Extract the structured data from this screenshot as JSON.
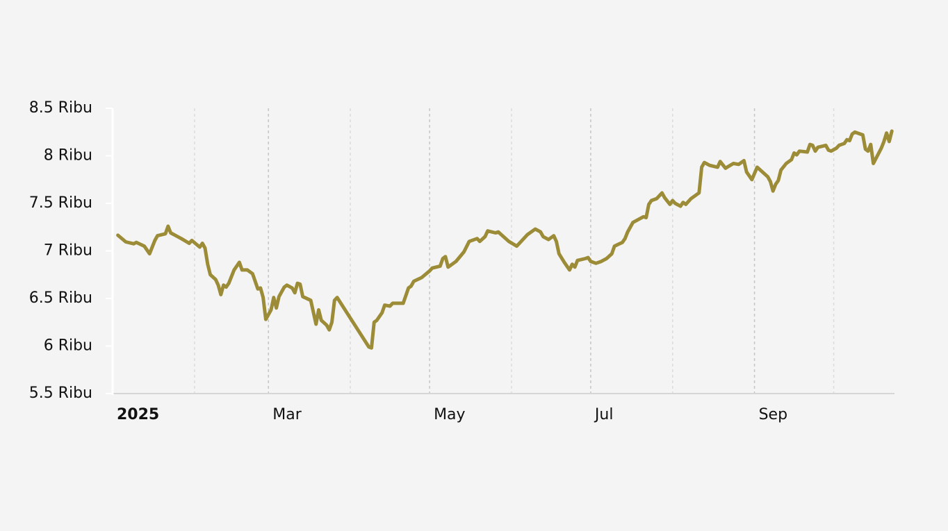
{
  "chart_data": {
    "type": "line",
    "color": "#9c8c37",
    "x": [
      "2025-01-03",
      "2025-01-06",
      "2025-01-09",
      "2025-01-10",
      "2025-01-13",
      "2025-01-15",
      "2025-01-17",
      "2025-01-18",
      "2025-01-21",
      "2025-01-22",
      "2025-01-23",
      "2025-01-27",
      "2025-01-30",
      "2025-01-31",
      "2025-02-03",
      "2025-02-04",
      "2025-02-05",
      "2025-02-06",
      "2025-02-07",
      "2025-02-09",
      "2025-02-10",
      "2025-02-11",
      "2025-02-12",
      "2025-02-13",
      "2025-02-14",
      "2025-02-16",
      "2025-02-18",
      "2025-02-19",
      "2025-02-21",
      "2025-02-23",
      "2025-02-25",
      "2025-02-26",
      "2025-02-27",
      "2025-02-28",
      "2025-03-02",
      "2025-03-03",
      "2025-03-04",
      "2025-03-05",
      "2025-03-07",
      "2025-03-08",
      "2025-03-10",
      "2025-03-11",
      "2025-03-12",
      "2025-03-13",
      "2025-03-14",
      "2025-03-17",
      "2025-03-19",
      "2025-03-20",
      "2025-03-21",
      "2025-03-23",
      "2025-03-24",
      "2025-03-25",
      "2025-03-26",
      "2025-03-27",
      "2025-04-08",
      "2025-04-09",
      "2025-04-10",
      "2025-04-11",
      "2025-04-13",
      "2025-04-14",
      "2025-04-16",
      "2025-04-17",
      "2025-04-21",
      "2025-04-23",
      "2025-04-24",
      "2025-04-25",
      "2025-04-28",
      "2025-05-01",
      "2025-05-02",
      "2025-05-05",
      "2025-05-06",
      "2025-05-07",
      "2025-05-08",
      "2025-05-11",
      "2025-05-14",
      "2025-05-16",
      "2025-05-19",
      "2025-05-20",
      "2025-05-22",
      "2025-05-23",
      "2025-05-26",
      "2025-05-27",
      "2025-05-31",
      "2025-06-03",
      "2025-06-05",
      "2025-06-07",
      "2025-06-10",
      "2025-06-12",
      "2025-06-13",
      "2025-06-15",
      "2025-06-17",
      "2025-06-18",
      "2025-06-19",
      "2025-06-21",
      "2025-06-23",
      "2025-06-24",
      "2025-06-25",
      "2025-06-26",
      "2025-06-29",
      "2025-06-30",
      "2025-07-01",
      "2025-07-03",
      "2025-07-05",
      "2025-07-07",
      "2025-07-09",
      "2025-07-10",
      "2025-07-13",
      "2025-07-14",
      "2025-07-15",
      "2025-07-17",
      "2025-07-21",
      "2025-07-22",
      "2025-07-23",
      "2025-07-24",
      "2025-07-26",
      "2025-07-28",
      "2025-07-29",
      "2025-07-31",
      "2025-08-01",
      "2025-08-02",
      "2025-08-04",
      "2025-08-05",
      "2025-08-06",
      "2025-08-08",
      "2025-08-11",
      "2025-08-12",
      "2025-08-13",
      "2025-08-15",
      "2025-08-18",
      "2025-08-19",
      "2025-08-21",
      "2025-08-24",
      "2025-08-26",
      "2025-08-28",
      "2025-08-29",
      "2025-08-31",
      "2025-09-02",
      "2025-09-06",
      "2025-09-07",
      "2025-09-08",
      "2025-09-09",
      "2025-09-10",
      "2025-09-11",
      "2025-09-13",
      "2025-09-15",
      "2025-09-16",
      "2025-09-17",
      "2025-09-18",
      "2025-09-21",
      "2025-09-22",
      "2025-09-23",
      "2025-09-24",
      "2025-09-25",
      "2025-09-28",
      "2025-09-29",
      "2025-09-30",
      "2025-10-02",
      "2025-10-03",
      "2025-10-05",
      "2025-10-06",
      "2025-10-07",
      "2025-10-08",
      "2025-10-09",
      "2025-10-12",
      "2025-10-13",
      "2025-10-14",
      "2025-10-15",
      "2025-10-16",
      "2025-10-19",
      "2025-10-20",
      "2025-10-21",
      "2025-10-22",
      "2025-10-23"
    ],
    "values": [
      7165,
      7095,
      7075,
      7090,
      7050,
      6970,
      7110,
      7160,
      7180,
      7260,
      7190,
      7130,
      7080,
      7110,
      7040,
      7080,
      7030,
      6860,
      6750,
      6700,
      6640,
      6540,
      6640,
      6620,
      6660,
      6800,
      6880,
      6800,
      6800,
      6760,
      6600,
      6610,
      6510,
      6280,
      6380,
      6510,
      6400,
      6520,
      6620,
      6640,
      6610,
      6560,
      6660,
      6650,
      6520,
      6480,
      6230,
      6380,
      6270,
      6220,
      6170,
      6250,
      6480,
      6510,
      5990,
      5980,
      6250,
      6270,
      6350,
      6430,
      6420,
      6450,
      6450,
      6610,
      6630,
      6680,
      6720,
      6790,
      6820,
      6840,
      6920,
      6940,
      6830,
      6890,
      6990,
      7100,
      7130,
      7100,
      7150,
      7210,
      7190,
      7200,
      7100,
      7050,
      7110,
      7170,
      7230,
      7200,
      7150,
      7120,
      7160,
      7100,
      6970,
      6880,
      6800,
      6860,
      6830,
      6900,
      6920,
      6930,
      6890,
      6870,
      6890,
      6920,
      6970,
      7050,
      7090,
      7130,
      7200,
      7300,
      7360,
      7350,
      7490,
      7530,
      7550,
      7610,
      7560,
      7490,
      7530,
      7500,
      7470,
      7510,
      7490,
      7550,
      7610,
      7880,
      7930,
      7900,
      7880,
      7940,
      7870,
      7920,
      7910,
      7950,
      7830,
      7750,
      7880,
      7780,
      7730,
      7630,
      7700,
      7740,
      7850,
      7920,
      7960,
      8030,
      8010,
      8050,
      8040,
      8120,
      8110,
      8050,
      8090,
      8110,
      8060,
      8050,
      8080,
      8110,
      8130,
      8170,
      8160,
      8230,
      8250,
      8220,
      8070,
      8050,
      8120,
      7920,
      8080,
      8150,
      8240,
      8150,
      8260
    ],
    "xlim": [
      "2025-01-01",
      "2025-10-24"
    ],
    "xticks": [
      {
        "value": "2025-01",
        "label": "2025"
      },
      {
        "value": "2025-03",
        "label": "Mar"
      },
      {
        "value": "2025-05",
        "label": "May"
      },
      {
        "value": "2025-07",
        "label": "Jul"
      },
      {
        "value": "2025-09",
        "label": "Sep"
      }
    ],
    "xminorticks": [
      "2025-02",
      "2025-04",
      "2025-06",
      "2025-08",
      "2025-10"
    ],
    "ylim": [
      5500,
      8500
    ],
    "yticks": [
      {
        "value": 5500,
        "label": "5.5 Ribu"
      },
      {
        "value": 6000,
        "label": "6 Ribu"
      },
      {
        "value": 6500,
        "label": "6.5 Ribu"
      },
      {
        "value": 7000,
        "label": "7 Ribu"
      },
      {
        "value": 7500,
        "label": "7.5 Ribu"
      },
      {
        "value": 8000,
        "label": "8 Ribu"
      },
      {
        "value": 8500,
        "label": "8.5 Ribu"
      }
    ],
    "grid": true
  }
}
